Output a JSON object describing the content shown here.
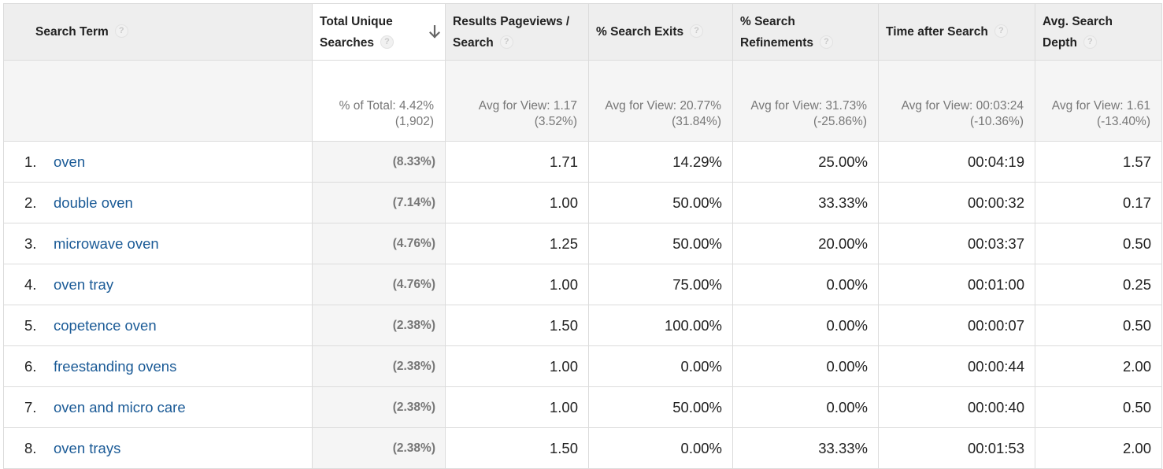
{
  "columns": [
    {
      "key": "term",
      "label_line1": "Search Term",
      "label_line2": ""
    },
    {
      "key": "unique",
      "label_line1": "Total Unique",
      "label_line2": "Searches"
    },
    {
      "key": "rpp",
      "label_line1": "Results Pageviews /",
      "label_line2": "Search"
    },
    {
      "key": "exits",
      "label_line1": "% Search Exits",
      "label_line2": ""
    },
    {
      "key": "refine",
      "label_line1": "% Search",
      "label_line2": "Refinements"
    },
    {
      "key": "time",
      "label_line1": "Time after Search",
      "label_line2": ""
    },
    {
      "key": "depth",
      "label_line1": "Avg. Search",
      "label_line2": "Depth"
    }
  ],
  "help_glyph": "?",
  "sort_icon": "arrow-down-icon",
  "summary": {
    "unique": {
      "label": "% of Total: 4.42%",
      "compare": "(1,902)"
    },
    "rpp": {
      "label": "Avg for View: 1.17",
      "compare": "(3.52%)"
    },
    "exits": {
      "label": "Avg for View: 20.77%",
      "compare": "(31.84%)"
    },
    "refine": {
      "label": "Avg for View: 31.73%",
      "compare": "(-25.86%)"
    },
    "time": {
      "label": "Avg for View: 00:03:24",
      "compare": "(-10.36%)"
    },
    "depth": {
      "label": "Avg for View: 1.61",
      "compare": "(-13.40%)"
    }
  },
  "rows": [
    {
      "index": "1.",
      "term": "oven",
      "unique_pct": "(8.33%)",
      "rpp": "1.71",
      "exits": "14.29%",
      "refine": "25.00%",
      "time": "00:04:19",
      "depth": "1.57"
    },
    {
      "index": "2.",
      "term": "double oven",
      "unique_pct": "(7.14%)",
      "rpp": "1.00",
      "exits": "50.00%",
      "refine": "33.33%",
      "time": "00:00:32",
      "depth": "0.17"
    },
    {
      "index": "3.",
      "term": "microwave oven",
      "unique_pct": "(4.76%)",
      "rpp": "1.25",
      "exits": "50.00%",
      "refine": "20.00%",
      "time": "00:03:37",
      "depth": "0.50"
    },
    {
      "index": "4.",
      "term": "oven tray",
      "unique_pct": "(4.76%)",
      "rpp": "1.00",
      "exits": "75.00%",
      "refine": "0.00%",
      "time": "00:01:00",
      "depth": "0.25"
    },
    {
      "index": "5.",
      "term": "copetence oven",
      "unique_pct": "(2.38%)",
      "rpp": "1.50",
      "exits": "100.00%",
      "refine": "0.00%",
      "time": "00:00:07",
      "depth": "0.50"
    },
    {
      "index": "6.",
      "term": "freestanding ovens",
      "unique_pct": "(2.38%)",
      "rpp": "1.00",
      "exits": "0.00%",
      "refine": "0.00%",
      "time": "00:00:44",
      "depth": "2.00"
    },
    {
      "index": "7.",
      "term": "oven and micro care",
      "unique_pct": "(2.38%)",
      "rpp": "1.00",
      "exits": "50.00%",
      "refine": "0.00%",
      "time": "00:00:40",
      "depth": "0.50"
    },
    {
      "index": "8.",
      "term": "oven trays",
      "unique_pct": "(2.38%)",
      "rpp": "1.50",
      "exits": "0.00%",
      "refine": "33.33%",
      "time": "00:01:53",
      "depth": "2.00"
    }
  ],
  "colors": {
    "link": "#1a5a96",
    "header_bg": "#eeeeee",
    "summary_bg": "#f5f5f5",
    "border": "#dcdcdc",
    "muted_text": "#777777"
  }
}
